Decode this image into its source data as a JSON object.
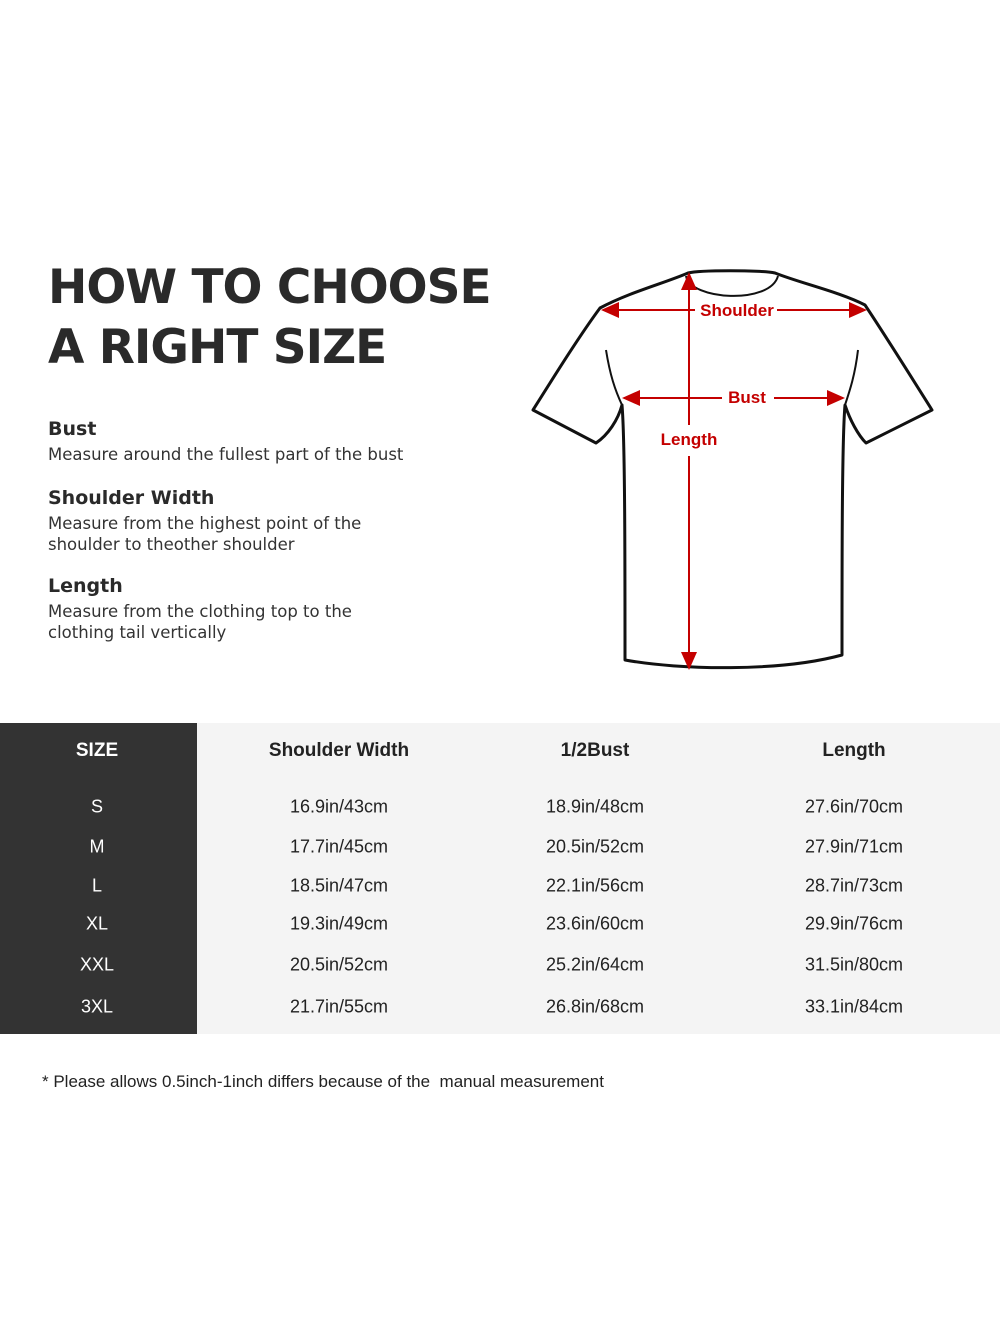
{
  "title": {
    "line1": "HOW TO CHOOSE",
    "line2": "A RIGHT SIZE"
  },
  "guide": [
    {
      "heading": "Bust",
      "text": "Measure around the fullest part of the bust"
    },
    {
      "heading": "Shoulder Width",
      "text": "Measure from the highest point of the shoulder to theother shoulder"
    },
    {
      "heading": "Length",
      "text": "Measure from the clothing top to the clothing tail vertically"
    }
  ],
  "diagram": {
    "shoulder": "Shoulder",
    "bust": "Bust",
    "length": "Length",
    "accent_color": "#cc0000"
  },
  "table": {
    "headers": [
      "SIZE",
      "Shoulder Width",
      "1/2Bust",
      "Length"
    ],
    "rows": [
      [
        "S",
        "16.9in/43cm",
        "18.9in/48cm",
        "27.6in/70cm"
      ],
      [
        "M",
        "17.7in/45cm",
        "20.5in/52cm",
        "27.9in/71cm"
      ],
      [
        "L",
        "18.5in/47cm",
        "22.1in/56cm",
        "28.7in/73cm"
      ],
      [
        "XL",
        "19.3in/49cm",
        "23.6in/60cm",
        "29.9in/76cm"
      ],
      [
        "XXL",
        "20.5in/52cm",
        "25.2in/64cm",
        "31.5in/80cm"
      ],
      [
        "3XL",
        "21.7in/55cm",
        "26.8in/68cm",
        "33.1in/84cm"
      ]
    ]
  },
  "note": "* Please allows 0.5inch-1inch differs because of the  manual measurement"
}
